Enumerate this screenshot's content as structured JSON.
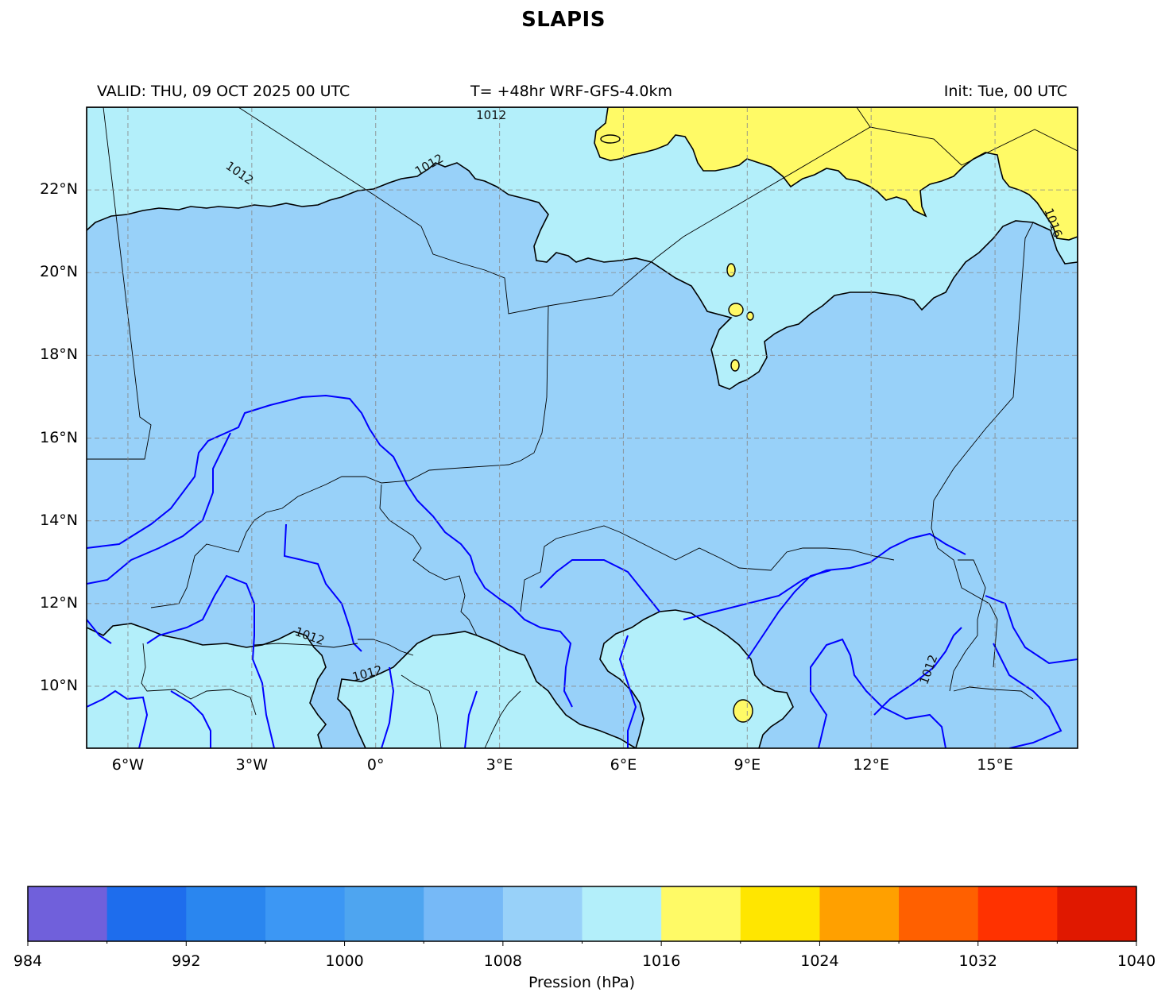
{
  "title": "SLAPIS",
  "header": {
    "valid": "VALID: THU, 09 OCT 2025 00 UTC",
    "model": "T= +48hr WRF-GFS-4.0km",
    "init": "Init: Tue, 00 UTC"
  },
  "map": {
    "extent": {
      "lon_min": -7,
      "lon_max": 17,
      "lat_min": 8.5,
      "lat_max": 24
    },
    "lat_ticks": [
      {
        "lat": 22,
        "label": "22°N"
      },
      {
        "lat": 20,
        "label": "20°N"
      },
      {
        "lat": 18,
        "label": "18°N"
      },
      {
        "lat": 16,
        "label": "16°N"
      },
      {
        "lat": 14,
        "label": "14°N"
      },
      {
        "lat": 12,
        "label": "12°N"
      },
      {
        "lat": 10,
        "label": "10°N"
      }
    ],
    "lon_ticks": [
      {
        "lon": -6,
        "label": "6°W"
      },
      {
        "lon": -3,
        "label": "3°W"
      },
      {
        "lon": 0,
        "label": "0°"
      },
      {
        "lon": 3,
        "label": "3°E"
      },
      {
        "lon": 6,
        "label": "6°E"
      },
      {
        "lon": 9,
        "label": "9°E"
      },
      {
        "lon": 12,
        "label": "12°E"
      },
      {
        "lon": 15,
        "label": "15°E"
      }
    ],
    "contour_labels": [
      {
        "text": "1012",
        "lon": 2.8,
        "lat": 23.8,
        "rotate": 0
      },
      {
        "text": "1012",
        "lon": -3.3,
        "lat": 22.4,
        "rotate": 35
      },
      {
        "text": "1012",
        "lon": 1.3,
        "lat": 22.6,
        "rotate": -30
      },
      {
        "text": "1016",
        "lon": 16.4,
        "lat": 21.2,
        "rotate": 70
      },
      {
        "text": "1012",
        "lon": -1.6,
        "lat": 11.2,
        "rotate": 20
      },
      {
        "text": "1012",
        "lon": -0.2,
        "lat": 10.3,
        "rotate": -15
      },
      {
        "text": "1012",
        "lon": 13.4,
        "lat": 10.4,
        "rotate": -70
      }
    ],
    "fill_colors": {
      "band_1008_1012": "#98d1f9",
      "band_1012_1016": "#b3effa",
      "band_1016_1020": "#fffa66"
    },
    "isobar_color": "#0000ff"
  },
  "colorbar": {
    "label": "Pression (hPa)",
    "min": 984,
    "max": 1040,
    "step": 4,
    "colors": [
      "#7060db",
      "#1e6ded",
      "#2a86ef",
      "#3c97f4",
      "#4ea5f0",
      "#76b9f7",
      "#98d1f9",
      "#b3effa",
      "#fffa66",
      "#ffe600",
      "#ffa000",
      "#ff6000",
      "#ff3200",
      "#e01800"
    ],
    "tick_labels": [
      "984",
      "992",
      "1000",
      "1008",
      "1016",
      "1024",
      "1032",
      "1040"
    ]
  }
}
